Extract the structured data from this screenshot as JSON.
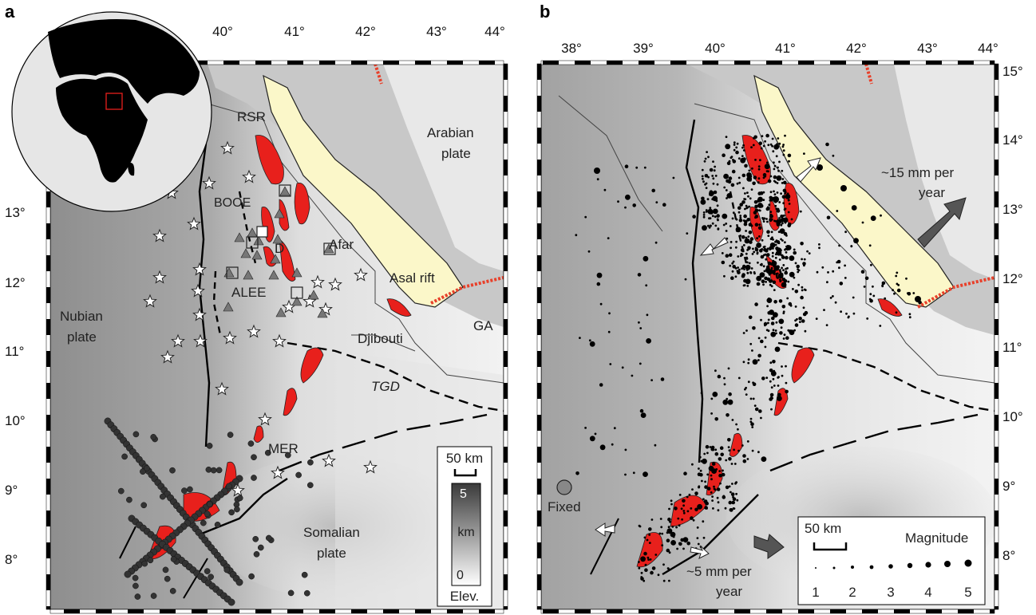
{
  "panel_a": {
    "letter": "a",
    "lon_ticks": [
      "40°",
      "41°",
      "42°",
      "43°",
      "44°"
    ],
    "lat_ticks": [
      "13°",
      "12°",
      "11°",
      "10°",
      "9°",
      "8°"
    ],
    "labels": {
      "rsr": "RSR",
      "booe": "BOOE",
      "d": "D",
      "afar": "Afar",
      "alee": "ALEE",
      "arabian": "Arabian",
      "arabian2": "plate",
      "asal": "Asal rift",
      "nubian": "Nubian",
      "nubian2": "plate",
      "djibouti": "Djibouti",
      "ga": "GA",
      "tgd": "TGD",
      "mer": "MER",
      "somalian": "Somalian",
      "somalian2": "plate"
    },
    "scale_bar": "50 km",
    "elev_legend": {
      "top": "5",
      "mid": "km",
      "bottom": "0",
      "caption": "Elev."
    }
  },
  "panel_b": {
    "letter": "b",
    "lon_ticks": [
      "38°",
      "39°",
      "40°",
      "41°",
      "42°",
      "43°",
      "44°"
    ],
    "lat_ticks": [
      "15°",
      "14°",
      "13°",
      "12°",
      "11°",
      "10°",
      "9°",
      "8°"
    ],
    "labels": {
      "rate_ne1": "~15 mm per",
      "rate_ne2": "year",
      "rate_s1": "~5 mm per",
      "rate_s2": "year",
      "fixed": "Fixed"
    },
    "legend": {
      "scale_bar": "50 km",
      "title": "Magnitude",
      "values": [
        "1",
        "2",
        "3",
        "4",
        "5"
      ]
    }
  },
  "colors": {
    "rift_segment": "#e8201c",
    "sea": "#c8c8c8",
    "red_sea_depression": "#fbf7c9",
    "ridge": "#e8402a"
  }
}
